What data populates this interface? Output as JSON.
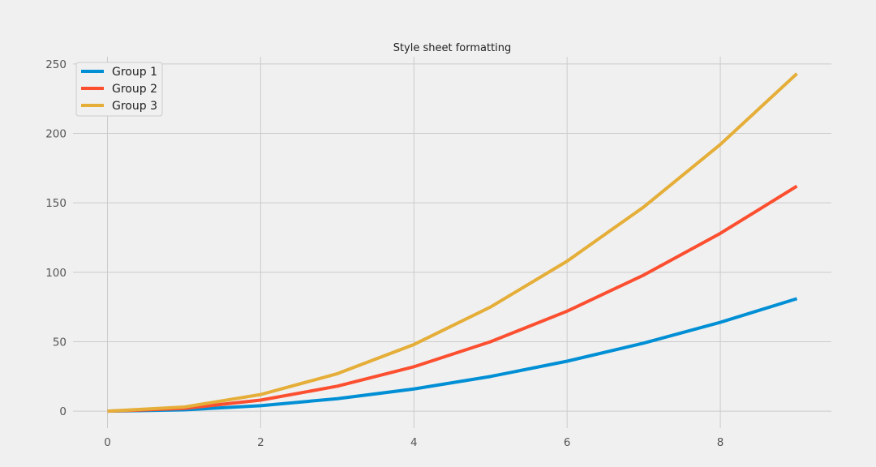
{
  "chart_data": {
    "type": "line",
    "title": "Style sheet formatting",
    "xlabel": "",
    "ylabel": "",
    "x": [
      0,
      1,
      2,
      3,
      4,
      5,
      6,
      7,
      8,
      9
    ],
    "xlim": [
      -0.45,
      9.45
    ],
    "ylim": [
      -12.15,
      255.15
    ],
    "xticks": [
      0,
      2,
      4,
      6,
      8
    ],
    "yticks": [
      0,
      50,
      100,
      150,
      200,
      250
    ],
    "grid": true,
    "legend_position": "top-left",
    "series": [
      {
        "name": "Group 1",
        "color": "#008fd5",
        "values": [
          0,
          1,
          4,
          9,
          16,
          25,
          36,
          49,
          64,
          81
        ]
      },
      {
        "name": "Group 2",
        "color": "#fc4f30",
        "values": [
          0,
          2,
          8,
          18,
          32,
          50,
          72,
          98,
          128,
          162
        ]
      },
      {
        "name": "Group 3",
        "color": "#e5ae38",
        "values": [
          0,
          3,
          12,
          27,
          48,
          75,
          108,
          147,
          192,
          243
        ]
      }
    ]
  }
}
